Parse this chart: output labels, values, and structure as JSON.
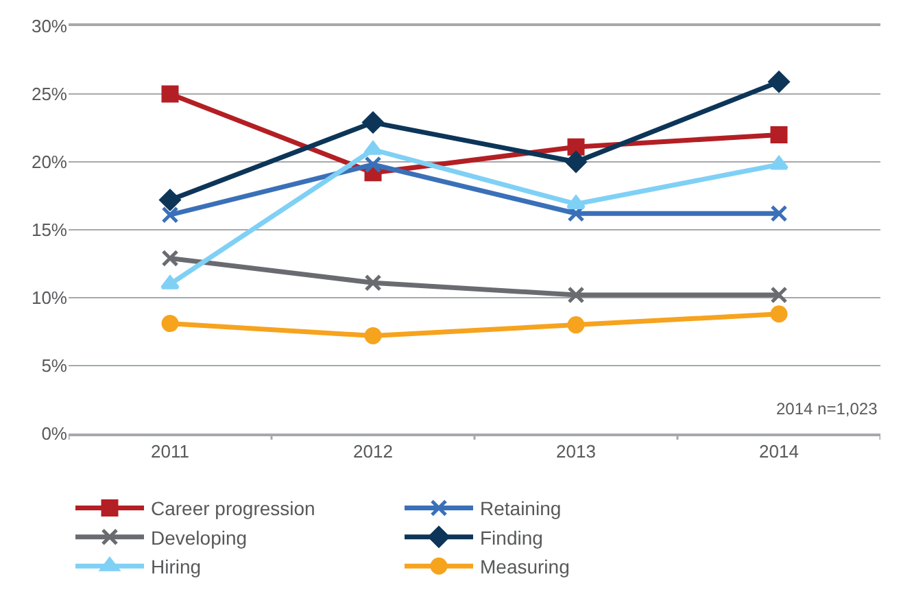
{
  "chart_data": {
    "type": "line",
    "categories": [
      "2011",
      "2012",
      "2013",
      "2014"
    ],
    "series": [
      {
        "name": "Career progression",
        "color": "#b31f24",
        "marker": "square",
        "values": [
          25,
          19.2,
          21.1,
          22
        ]
      },
      {
        "name": "Retaining",
        "color": "#3a70b8",
        "marker": "cross",
        "values": [
          16.1,
          19.8,
          16.2,
          16.2
        ]
      },
      {
        "name": "Developing",
        "color": "#696b70",
        "marker": "cross",
        "values": [
          12.9,
          11.1,
          10.2,
          10.2
        ]
      },
      {
        "name": "Finding",
        "color": "#0c3558",
        "marker": "diamond",
        "values": [
          17.2,
          22.9,
          20,
          25.9
        ]
      },
      {
        "name": "Hiring",
        "color": "#7fd0f5",
        "marker": "triangle",
        "values": [
          11,
          20.9,
          16.9,
          19.8
        ]
      },
      {
        "name": "Measuring",
        "color": "#f6a31e",
        "marker": "circle",
        "values": [
          8.1,
          7.2,
          8,
          8.8
        ]
      }
    ],
    "ylim": [
      0,
      30
    ],
    "yticks": [
      {
        "value": 0,
        "label": "0%"
      },
      {
        "value": 5,
        "label": "5%"
      },
      {
        "value": 10,
        "label": "10%"
      },
      {
        "value": 15,
        "label": "15%"
      },
      {
        "value": 20,
        "label": "20%"
      },
      {
        "value": 25,
        "label": "25%"
      },
      {
        "value": 30,
        "label": "30%"
      }
    ],
    "grid": "y",
    "legend": "bottom",
    "line_style": "solid",
    "annotations": [
      "2014 n=1,023"
    ]
  }
}
